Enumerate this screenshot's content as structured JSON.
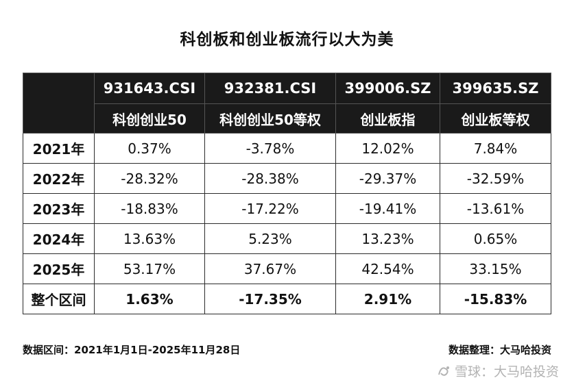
{
  "title": "科创板和创业板流行以大为美",
  "columns": [
    {
      "code": "931643.CSI",
      "name": "科创创业50"
    },
    {
      "code": "932381.CSI",
      "name": "科创创业50等权"
    },
    {
      "code": "399006.SZ",
      "name": "创业板指"
    },
    {
      "code": "399635.SZ",
      "name": "创业板等权"
    }
  ],
  "rows": [
    {
      "label": "2021年",
      "values": [
        "0.37%",
        "-3.78%",
        "12.02%",
        "7.84%"
      ]
    },
    {
      "label": "2022年",
      "values": [
        "-28.32%",
        "-28.38%",
        "-29.37%",
        "-32.59%"
      ]
    },
    {
      "label": "2023年",
      "values": [
        "-18.83%",
        "-17.22%",
        "-19.41%",
        "-13.61%"
      ]
    },
    {
      "label": "2024年",
      "values": [
        "13.63%",
        "5.23%",
        "13.23%",
        "0.65%"
      ]
    },
    {
      "label": "2025年",
      "values": [
        "53.17%",
        "37.67%",
        "42.54%",
        "33.15%"
      ]
    },
    {
      "label": "整个区间",
      "values": [
        "1.63%",
        "-17.35%",
        "2.91%",
        "-15.83%"
      ]
    }
  ],
  "footer": {
    "date_range": "数据区间：2021年1月1日-2025年11月28日",
    "source": "数据整理：大马哈投资"
  },
  "watermark": "雪球：大马哈投资"
}
